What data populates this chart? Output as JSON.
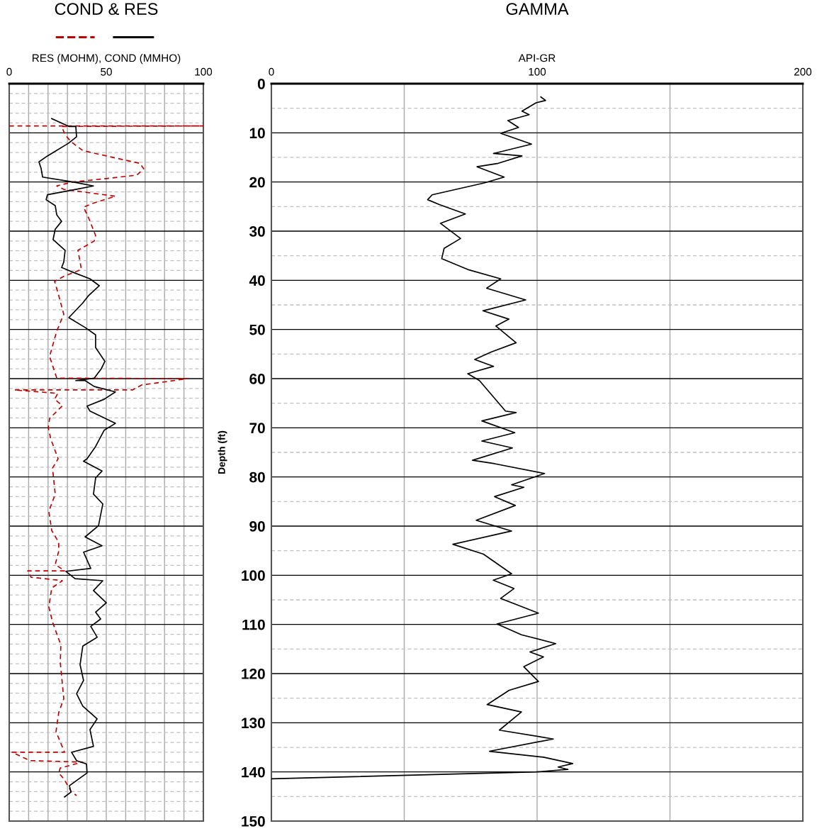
{
  "chart_data": [
    {
      "type": "line",
      "title": "COND & RES",
      "xlabel": "RES (MOHM), COND (MMHO)",
      "xlim": [
        0,
        100
      ],
      "ylim": [
        150,
        0
      ],
      "xticks": [
        0,
        {
          "value": 10,
          "label": null
        },
        {
          "value": 20,
          "label": null
        },
        {
          "value": 30,
          "label": null
        },
        {
          "value": 40,
          "label": null
        },
        50,
        {
          "value": 60,
          "label": null
        },
        {
          "value": 70,
          "label": null
        },
        {
          "value": 80,
          "label": null
        },
        {
          "value": 90,
          "label": null
        },
        100
      ],
      "yticks": [
        {
          "value": 0,
          "label": null
        },
        {
          "value": 10,
          "label": null
        },
        {
          "value": 20,
          "label": null
        },
        {
          "value": 30,
          "label": null
        },
        {
          "value": 40,
          "label": null
        },
        {
          "value": 50,
          "label": null
        },
        {
          "value": 60,
          "label": null
        },
        {
          "value": 70,
          "label": null
        },
        {
          "value": 80,
          "label": null
        },
        {
          "value": 90,
          "label": null
        },
        {
          "value": 100,
          "label": null
        },
        {
          "value": 110,
          "label": null
        },
        {
          "value": 120,
          "label": null
        },
        {
          "value": 130,
          "label": null
        },
        {
          "value": 140,
          "label": null
        },
        {
          "value": 150,
          "label": null
        }
      ],
      "tick_labels": "x",
      "grid": true,
      "ref_lines": [
        {
          "axis": "y",
          "value": 2,
          "line_style": "dashed",
          "color": "#c0c0c0"
        },
        {
          "axis": "y",
          "value": 4,
          "line_style": "dashed",
          "color": "#c0c0c0"
        },
        {
          "axis": "y",
          "value": 6,
          "line_style": "dashed",
          "color": "#c0c0c0"
        },
        {
          "axis": "y",
          "value": 8,
          "line_style": "dashed",
          "color": "#c0c0c0"
        },
        {
          "axis": "y",
          "value": 12,
          "line_style": "dashed",
          "color": "#c0c0c0"
        },
        {
          "axis": "y",
          "value": 14,
          "line_style": "dashed",
          "color": "#c0c0c0"
        },
        {
          "axis": "y",
          "value": 16,
          "line_style": "dashed",
          "color": "#c0c0c0"
        },
        {
          "axis": "y",
          "value": 18,
          "line_style": "dashed",
          "color": "#c0c0c0"
        },
        {
          "axis": "y",
          "value": 22,
          "line_style": "dashed",
          "color": "#c0c0c0"
        },
        {
          "axis": "y",
          "value": 24,
          "line_style": "dashed",
          "color": "#c0c0c0"
        },
        {
          "axis": "y",
          "value": 26,
          "line_style": "dashed",
          "color": "#c0c0c0"
        },
        {
          "axis": "y",
          "value": 28,
          "line_style": "dashed",
          "color": "#c0c0c0"
        },
        {
          "axis": "y",
          "value": 32,
          "line_style": "dashed",
          "color": "#c0c0c0"
        },
        {
          "axis": "y",
          "value": 34,
          "line_style": "dashed",
          "color": "#c0c0c0"
        },
        {
          "axis": "y",
          "value": 36,
          "line_style": "dashed",
          "color": "#c0c0c0"
        },
        {
          "axis": "y",
          "value": 38,
          "line_style": "dashed",
          "color": "#c0c0c0"
        },
        {
          "axis": "y",
          "value": 42,
          "line_style": "dashed",
          "color": "#c0c0c0"
        },
        {
          "axis": "y",
          "value": 44,
          "line_style": "dashed",
          "color": "#c0c0c0"
        },
        {
          "axis": "y",
          "value": 46,
          "line_style": "dashed",
          "color": "#c0c0c0"
        },
        {
          "axis": "y",
          "value": 48,
          "line_style": "dashed",
          "color": "#c0c0c0"
        },
        {
          "axis": "y",
          "value": 52,
          "line_style": "dashed",
          "color": "#c0c0c0"
        },
        {
          "axis": "y",
          "value": 54,
          "line_style": "dashed",
          "color": "#c0c0c0"
        },
        {
          "axis": "y",
          "value": 56,
          "line_style": "dashed",
          "color": "#c0c0c0"
        },
        {
          "axis": "y",
          "value": 58,
          "line_style": "dashed",
          "color": "#c0c0c0"
        },
        {
          "axis": "y",
          "value": 62,
          "line_style": "dashed",
          "color": "#c0c0c0"
        },
        {
          "axis": "y",
          "value": 64,
          "line_style": "dashed",
          "color": "#c0c0c0"
        },
        {
          "axis": "y",
          "value": 66,
          "line_style": "dashed",
          "color": "#c0c0c0"
        },
        {
          "axis": "y",
          "value": 68,
          "line_style": "dashed",
          "color": "#c0c0c0"
        },
        {
          "axis": "y",
          "value": 72,
          "line_style": "dashed",
          "color": "#c0c0c0"
        },
        {
          "axis": "y",
          "value": 74,
          "line_style": "dashed",
          "color": "#c0c0c0"
        },
        {
          "axis": "y",
          "value": 76,
          "line_style": "dashed",
          "color": "#c0c0c0"
        },
        {
          "axis": "y",
          "value": 78,
          "line_style": "dashed",
          "color": "#c0c0c0"
        },
        {
          "axis": "y",
          "value": 82,
          "line_style": "dashed",
          "color": "#c0c0c0"
        },
        {
          "axis": "y",
          "value": 84,
          "line_style": "dashed",
          "color": "#c0c0c0"
        },
        {
          "axis": "y",
          "value": 86,
          "line_style": "dashed",
          "color": "#c0c0c0"
        },
        {
          "axis": "y",
          "value": 88,
          "line_style": "dashed",
          "color": "#c0c0c0"
        },
        {
          "axis": "y",
          "value": 92,
          "line_style": "dashed",
          "color": "#c0c0c0"
        },
        {
          "axis": "y",
          "value": 94,
          "line_style": "dashed",
          "color": "#c0c0c0"
        },
        {
          "axis": "y",
          "value": 96,
          "line_style": "dashed",
          "color": "#c0c0c0"
        },
        {
          "axis": "y",
          "value": 98,
          "line_style": "dashed",
          "color": "#c0c0c0"
        },
        {
          "axis": "y",
          "value": 102,
          "line_style": "dashed",
          "color": "#c0c0c0"
        },
        {
          "axis": "y",
          "value": 104,
          "line_style": "dashed",
          "color": "#c0c0c0"
        },
        {
          "axis": "y",
          "value": 106,
          "line_style": "dashed",
          "color": "#c0c0c0"
        },
        {
          "axis": "y",
          "value": 108,
          "line_style": "dashed",
          "color": "#c0c0c0"
        },
        {
          "axis": "y",
          "value": 112,
          "line_style": "dashed",
          "color": "#c0c0c0"
        },
        {
          "axis": "y",
          "value": 114,
          "line_style": "dashed",
          "color": "#c0c0c0"
        },
        {
          "axis": "y",
          "value": 116,
          "line_style": "dashed",
          "color": "#c0c0c0"
        },
        {
          "axis": "y",
          "value": 118,
          "line_style": "dashed",
          "color": "#c0c0c0"
        },
        {
          "axis": "y",
          "value": 122,
          "line_style": "dashed",
          "color": "#c0c0c0"
        },
        {
          "axis": "y",
          "value": 124,
          "line_style": "dashed",
          "color": "#c0c0c0"
        },
        {
          "axis": "y",
          "value": 126,
          "line_style": "dashed",
          "color": "#c0c0c0"
        },
        {
          "axis": "y",
          "value": 128,
          "line_style": "dashed",
          "color": "#c0c0c0"
        },
        {
          "axis": "y",
          "value": 132,
          "line_style": "dashed",
          "color": "#c0c0c0"
        },
        {
          "axis": "y",
          "value": 134,
          "line_style": "dashed",
          "color": "#c0c0c0"
        },
        {
          "axis": "y",
          "value": 136,
          "line_style": "dashed",
          "color": "#c0c0c0"
        },
        {
          "axis": "y",
          "value": 138,
          "line_style": "dashed",
          "color": "#c0c0c0"
        },
        {
          "axis": "y",
          "value": 142,
          "line_style": "dashed",
          "color": "#c0c0c0"
        },
        {
          "axis": "y",
          "value": 144,
          "line_style": "dashed",
          "color": "#c0c0c0"
        },
        {
          "axis": "y",
          "value": 146,
          "line_style": "dashed",
          "color": "#c0c0c0"
        },
        {
          "axis": "y",
          "value": 148,
          "line_style": "dashed",
          "color": "#c0c0c0"
        }
      ],
      "series": [
        {
          "color": "#c00000",
          "line_style": "dashed",
          "x": [
            0,
            100,
            27,
            28.8,
            31.8,
            37.9,
            50,
            67.2,
            69.3,
            65.7,
            50,
            32.8,
            24.5,
            28.1,
            54.7,
            42.7,
            38.3,
            40.9,
            44.5,
            43.8,
            35.4,
            37.2,
            28.1,
            23.4,
            25.5,
            28.1,
            24.5,
            20.8,
            24.5,
            92,
            68.2,
            63.5,
            2.6,
            25,
            23.4,
            27.4,
            20.8,
            20.1,
            21.5,
            25.2,
            22.3,
            23.7,
            20.4,
            21.9,
            25.5,
            25.5,
            23.7,
            28.5,
            9.5,
            11.3,
            27.4,
            21.9,
            20.4,
            22.3,
            26.6,
            26.3,
            28.1,
            25.5,
            24.1,
            28.5,
            1.5,
            10.6,
            37.9,
            26.3,
            25.5,
            28.1,
            32.1,
            34.7
          ],
          "values": [
            8.6,
            8.6,
            8.7,
            10.4,
            11.8,
            13.6,
            14.7,
            16.2,
            17.3,
            18.6,
            19.3,
            20,
            20.8,
            21.5,
            22.9,
            24.4,
            25.1,
            27.3,
            30.9,
            32,
            33.9,
            37.8,
            39.2,
            40.2,
            43.1,
            46.9,
            50.3,
            55.5,
            59.9,
            60,
            61.3,
            62.3,
            62.3,
            63,
            64.2,
            65.5,
            68.1,
            70,
            72.4,
            76.3,
            78.2,
            83.5,
            87,
            90.9,
            93.3,
            95.1,
            97.8,
            99.1,
            99.1,
            100.4,
            101.1,
            102.6,
            106.4,
            109.5,
            114.2,
            117.7,
            125.1,
            127.9,
            131.8,
            136,
            136,
            137.7,
            138,
            139.2,
            140.2,
            141.4,
            144.1,
            144.8
          ]
        },
        {
          "color": "#000000",
          "line_style": "solid",
          "x": [
            21.9,
            30.7,
            34.3,
            34.7,
            30.6,
            19.7,
            15.3,
            16.4,
            17.2,
            32.8,
            43.4,
            34.3,
            19.7,
            19,
            23.7,
            24.5,
            27,
            23.7,
            22.6,
            28.8,
            28.1,
            27,
            31.8,
            41.6,
            46.4,
            40.9,
            37.9,
            30.7,
            39.1,
            44.5,
            44.5,
            49.3,
            47.4,
            43.8,
            34.3,
            39.1,
            43.8,
            54.7,
            48.9,
            40.1,
            41.6,
            54.7,
            48.9,
            44.5,
            40.1,
            38.3,
            47.8,
            44.5,
            43.4,
            48.2,
            46,
            39.1,
            47.8,
            38.3,
            42,
            29.2,
            33.9,
            48.2,
            43.4,
            50,
            44.5,
            47.1,
            42,
            45.3,
            37.9,
            36.5,
            38.3,
            34.7,
            37.9,
            45.3,
            41.6,
            43.4,
            32.1,
            34.7,
            39.8,
            40.1,
            31,
            31.8,
            28.5
          ],
          "values": [
            7.1,
            8.7,
            8.7,
            10.8,
            12.1,
            14.7,
            15.9,
            17.2,
            19,
            20,
            20.8,
            21.5,
            22.6,
            23.6,
            24.8,
            26.7,
            28,
            29.6,
            31.7,
            33.9,
            36.3,
            37.4,
            38.2,
            39.7,
            41.1,
            43.1,
            44.6,
            47.6,
            49.6,
            51.1,
            53.7,
            56.5,
            58,
            59.9,
            60.4,
            60.4,
            61.6,
            62.7,
            64.2,
            65.6,
            66.6,
            69.1,
            70.5,
            73.8,
            76.3,
            76.8,
            78.8,
            80.2,
            83.5,
            85.5,
            89.9,
            92.2,
            94,
            95.3,
            98.6,
            99.2,
            100.7,
            101.1,
            103.1,
            105.6,
            107.5,
            108.9,
            110.4,
            112.6,
            114.4,
            118.2,
            121.4,
            124.1,
            126.6,
            129.2,
            131.4,
            134.8,
            136,
            137.7,
            138.4,
            140.2,
            142.8,
            144.1,
            145.1
          ]
        }
      ]
    },
    {
      "type": "line",
      "title": "GAMMA",
      "xlabel": "API-GR",
      "ylabel": "Depth (ft)",
      "xlim": [
        0,
        200
      ],
      "ylim": [
        150,
        0
      ],
      "xticks": [
        0,
        {
          "value": 50,
          "label": null
        },
        100,
        {
          "value": 150,
          "label": null
        },
        200
      ],
      "yticks": [
        0,
        10,
        20,
        30,
        40,
        50,
        60,
        70,
        80,
        90,
        100,
        110,
        120,
        130,
        140,
        150
      ],
      "grid": true,
      "ref_lines": [
        {
          "axis": "y",
          "value": 5,
          "line_style": "dashed",
          "color": "#c0c0c0"
        },
        {
          "axis": "y",
          "value": 15,
          "line_style": "dashed",
          "color": "#c0c0c0"
        },
        {
          "axis": "y",
          "value": 25,
          "line_style": "dashed",
          "color": "#c0c0c0"
        },
        {
          "axis": "y",
          "value": 35,
          "line_style": "dashed",
          "color": "#c0c0c0"
        },
        {
          "axis": "y",
          "value": 45,
          "line_style": "dashed",
          "color": "#c0c0c0"
        },
        {
          "axis": "y",
          "value": 55,
          "line_style": "dashed",
          "color": "#c0c0c0"
        },
        {
          "axis": "y",
          "value": 65,
          "line_style": "dashed",
          "color": "#c0c0c0"
        },
        {
          "axis": "y",
          "value": 75,
          "line_style": "dashed",
          "color": "#c0c0c0"
        },
        {
          "axis": "y",
          "value": 85,
          "line_style": "dashed",
          "color": "#c0c0c0"
        },
        {
          "axis": "y",
          "value": 95,
          "line_style": "dashed",
          "color": "#c0c0c0"
        },
        {
          "axis": "y",
          "value": 105,
          "line_style": "dashed",
          "color": "#c0c0c0"
        },
        {
          "axis": "y",
          "value": 115,
          "line_style": "dashed",
          "color": "#c0c0c0"
        },
        {
          "axis": "y",
          "value": 125,
          "line_style": "dashed",
          "color": "#c0c0c0"
        },
        {
          "axis": "y",
          "value": 135,
          "line_style": "dashed",
          "color": "#c0c0c0"
        },
        {
          "axis": "y",
          "value": 145,
          "line_style": "dashed",
          "color": "#c0c0c0"
        }
      ],
      "series": [
        {
          "color": "#000000",
          "line_style": "solid",
          "x": [
            101.4,
            103.2,
            99.6,
            94.3,
            97,
            89,
            93,
            86.3,
            97.9,
            83.6,
            94.3,
            85.4,
            77.4,
            87.6,
            80.1,
            60.5,
            58.8,
            63.2,
            73,
            63.6,
            71.2,
            65,
            64.1,
            73.9,
            86.3,
            81,
            95.7,
            79.6,
            89.4,
            84.5,
            92.1,
            82.7,
            76.5,
            83.6,
            73.9,
            78.3,
            88.1,
            92.1,
            79.2,
            91.6,
            79.2,
            90.7,
            75.7,
            84,
            102.8,
            90.4,
            95,
            84,
            91.8,
            77.1,
            90.4,
            68.3,
            79.8,
            90.4,
            83.5,
            91.3,
            86.3,
            100.5,
            84.9,
            94.1,
            107,
            97.3,
            102.4,
            95,
            100.5,
            89.5,
            81.2,
            94.1,
            85.8,
            106.1,
            82.1,
            102.4,
            113.4,
            107.9,
            111.6,
            99.6,
            0
          ],
          "values": [
            2.7,
            3.4,
            3.9,
            5.6,
            6.3,
            7.5,
            8.9,
            10.1,
            12.3,
            14.2,
            14.7,
            16.2,
            16.9,
            19,
            20.2,
            22.6,
            23.6,
            24.6,
            26.5,
            28.4,
            31.5,
            33.5,
            35.6,
            37.8,
            39.7,
            41.6,
            44,
            46.2,
            47.9,
            49.3,
            52.7,
            54.6,
            56.1,
            57.5,
            59,
            60.4,
            66.6,
            66.9,
            68.6,
            71,
            72.7,
            74.1,
            76.6,
            77.3,
            79.3,
            81.6,
            82.1,
            84,
            85.8,
            88.8,
            91,
            93.7,
            95.7,
            99.7,
            101,
            102.7,
            104.7,
            107.7,
            109.9,
            112.1,
            113.9,
            115.6,
            116.6,
            118.6,
            121.6,
            123.4,
            126.3,
            127.8,
            131.5,
            133.3,
            135.8,
            137,
            138.3,
            139,
            139.5,
            140,
            141.4
          ]
        }
      ]
    }
  ]
}
